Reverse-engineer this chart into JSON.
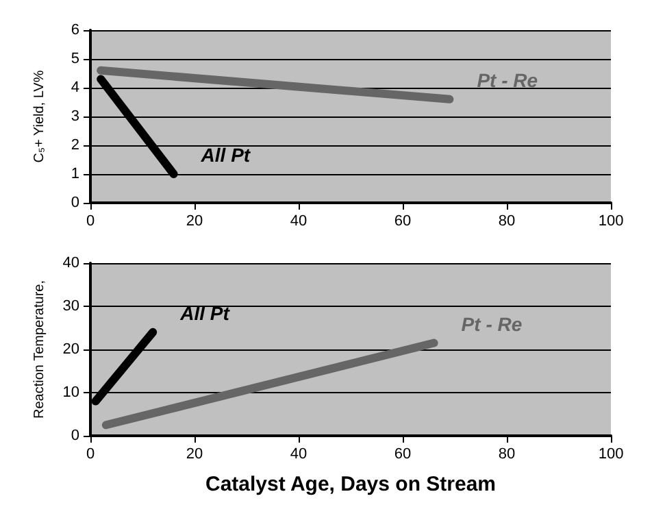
{
  "chart_data": [
    {
      "type": "line",
      "ylabel": "C₅+ Yield, LV%",
      "xlim": [
        0,
        100
      ],
      "xticks": [
        0,
        20,
        40,
        60,
        80,
        100
      ],
      "ylim": [
        0,
        6
      ],
      "yticks": [
        0,
        1,
        2,
        3,
        4,
        5,
        6
      ],
      "grid": "y",
      "marker": "none",
      "line_style": "solid",
      "series": [
        {
          "name": "All Pt",
          "color": "#000000",
          "x": [
            2,
            16
          ],
          "values": [
            4.3,
            1
          ]
        },
        {
          "name": "Pt - Re",
          "color": "#666666",
          "x": [
            2,
            69
          ],
          "values": [
            4.6,
            3.6
          ]
        }
      ]
    },
    {
      "type": "line",
      "ylabel": "Reaction Temperature,",
      "xlabel": "Catalyst Age, Days on Stream",
      "xlim": [
        0,
        100
      ],
      "xticks": [
        0,
        20,
        40,
        60,
        80,
        100
      ],
      "ylim": [
        0,
        40
      ],
      "yticks": [
        0,
        10,
        20,
        30,
        40
      ],
      "grid": "y",
      "marker": "none",
      "line_style": "solid",
      "series": [
        {
          "name": "All Pt",
          "color": "#000000",
          "x": [
            1,
            12
          ],
          "values": [
            8,
            24
          ]
        },
        {
          "name": "Pt - Re",
          "color": "#666666",
          "x": [
            3,
            66
          ],
          "values": [
            2.5,
            21.5
          ]
        }
      ]
    }
  ]
}
